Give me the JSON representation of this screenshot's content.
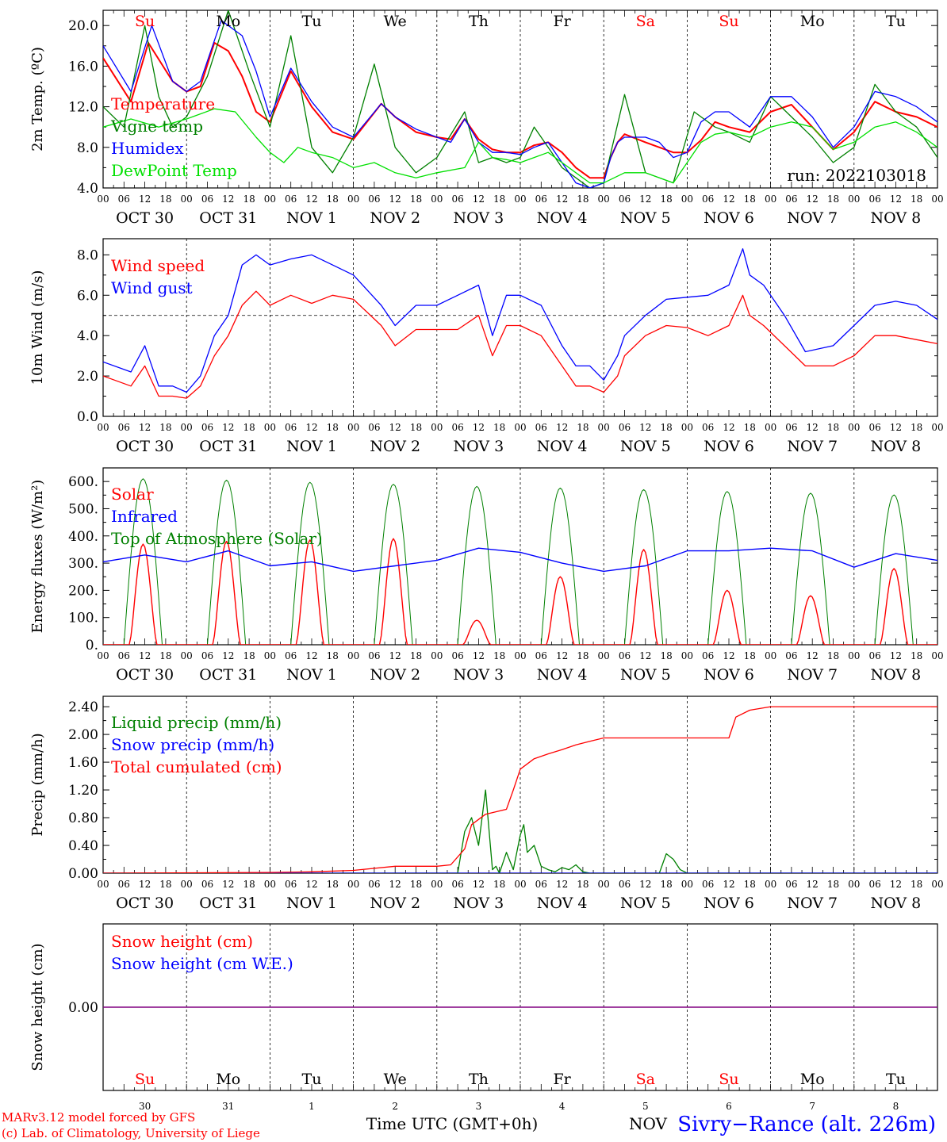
{
  "run_label": "run: 2022103018",
  "footer": {
    "credit1": "MARv3.12 model forced by GFS",
    "credit2": "(c) Lab. of Climatology, University of Liege",
    "xlabel": "Time UTC (GMT+0h)",
    "xlabel_suffix": "NOV",
    "station": "Sivry−Rance (alt. 226m)"
  },
  "colors": {
    "red": "#ff0000",
    "green": "#008000",
    "blue": "#0000ff",
    "lightgreen": "#00e000",
    "purple": "#800080",
    "sat_sun": "#ff0000",
    "weekday": "#000000"
  },
  "days": [
    {
      "dow": "Su",
      "date": "OCT 30",
      "num": "30",
      "weekend": true
    },
    {
      "dow": "Mo",
      "date": "OCT 31",
      "num": "31",
      "weekend": false
    },
    {
      "dow": "Tu",
      "date": "NOV  1",
      "num": "1",
      "weekend": false
    },
    {
      "dow": "We",
      "date": "NOV  2",
      "num": "2",
      "weekend": false
    },
    {
      "dow": "Th",
      "date": "NOV  3",
      "num": "3",
      "weekend": false
    },
    {
      "dow": "Fr",
      "date": "NOV  4",
      "num": "4",
      "weekend": false
    },
    {
      "dow": "Sa",
      "date": "NOV  5",
      "num": "5",
      "weekend": true
    },
    {
      "dow": "Su",
      "date": "NOV  6",
      "num": "6",
      "weekend": true
    },
    {
      "dow": "Mo",
      "date": "NOV  7",
      "num": "7",
      "weekend": false
    },
    {
      "dow": "Tu",
      "date": "NOV  8",
      "num": "8",
      "weekend": false
    }
  ],
  "hour_ticks": [
    "00",
    "06",
    "12",
    "18"
  ],
  "chart_data": [
    {
      "id": "temp",
      "type": "line",
      "ylabel": "2m Temp. (ºC)",
      "ylim": [
        4,
        21.5
      ],
      "yticks": [
        4,
        8,
        12,
        16,
        20
      ],
      "ytick_labels": [
        "4.0",
        "8.0",
        "12.0",
        "16.0",
        "20.0"
      ],
      "x_unit": "hours since OCT 30 00 UTC",
      "series": [
        {
          "name": "Temperature",
          "color": "#ff0000",
          "x": [
            0,
            8,
            13,
            20,
            24,
            28,
            32,
            36,
            40,
            44,
            48,
            54,
            60,
            66,
            72,
            80,
            84,
            90,
            96,
            100,
            104,
            108,
            112,
            116,
            120,
            124,
            128,
            132,
            136,
            140,
            144,
            146,
            148,
            150,
            156,
            160,
            164,
            168,
            172,
            176,
            180,
            186,
            192,
            198,
            204,
            210,
            216,
            222,
            228,
            234,
            240
          ],
          "y": [
            16.8,
            12.5,
            18.3,
            14.5,
            13.5,
            14.0,
            18.3,
            17.5,
            15.0,
            11.5,
            10.5,
            15.5,
            12.0,
            9.5,
            8.8,
            12.3,
            11.0,
            9.5,
            9.0,
            8.8,
            10.8,
            8.8,
            7.8,
            7.5,
            7.5,
            8.2,
            8.5,
            7.5,
            6.0,
            5.0,
            5.0,
            7.0,
            8.5,
            9.3,
            8.5,
            8.0,
            7.5,
            7.5,
            8.7,
            10.5,
            10.0,
            9.5,
            11.5,
            12.2,
            10.0,
            7.8,
            9.5,
            12.5,
            11.5,
            11.0,
            10.0
          ]
        },
        {
          "name": "Vigne temp",
          "color": "#008000",
          "x": [
            0,
            6,
            12,
            16,
            20,
            24,
            30,
            36,
            42,
            48,
            54,
            60,
            66,
            72,
            78,
            84,
            90,
            96,
            104,
            108,
            112,
            116,
            120,
            124,
            128,
            132,
            136,
            140,
            144,
            150,
            156,
            160,
            164,
            170,
            176,
            180,
            186,
            192,
            198,
            204,
            210,
            216,
            222,
            228,
            234,
            240
          ],
          "y": [
            12.0,
            10.0,
            20.0,
            13.0,
            10.0,
            11.0,
            15.0,
            21.5,
            15.5,
            10.0,
            19.0,
            8.0,
            5.5,
            9.0,
            16.2,
            8.0,
            5.5,
            7.0,
            11.5,
            6.5,
            7.0,
            6.5,
            7.0,
            10.0,
            8.0,
            6.0,
            5.0,
            4.0,
            4.5,
            13.2,
            5.5,
            5.0,
            4.5,
            11.5,
            10.0,
            9.5,
            8.5,
            13.0,
            11.0,
            9.0,
            6.5,
            8.0,
            14.2,
            11.5,
            10.0,
            7.0
          ]
        },
        {
          "name": "Humidex",
          "color": "#0000ff",
          "x": [
            0,
            8,
            14,
            20,
            24,
            28,
            34,
            40,
            44,
            48,
            54,
            60,
            66,
            72,
            80,
            84,
            90,
            96,
            100,
            104,
            108,
            112,
            116,
            120,
            124,
            128,
            132,
            136,
            140,
            144,
            146,
            148,
            150,
            156,
            160,
            164,
            168,
            172,
            176,
            180,
            186,
            192,
            198,
            204,
            210,
            216,
            222,
            228,
            234,
            240
          ],
          "y": [
            18.0,
            13.5,
            20.0,
            14.5,
            13.5,
            14.5,
            20.5,
            19.0,
            15.5,
            11.0,
            15.8,
            12.5,
            10.0,
            9.0,
            12.3,
            11.0,
            9.8,
            9.0,
            8.5,
            10.8,
            8.5,
            7.5,
            7.5,
            7.3,
            8.0,
            8.5,
            6.5,
            4.5,
            4.0,
            4.5,
            7.0,
            8.5,
            9.0,
            9.0,
            8.5,
            7.0,
            7.5,
            10.5,
            11.5,
            11.5,
            10.0,
            13.0,
            13.0,
            11.0,
            8.0,
            10.0,
            13.5,
            13.0,
            12.0,
            10.5
          ]
        },
        {
          "name": "DewPoint Temp",
          "color": "#00e000",
          "x": [
            0,
            8,
            16,
            24,
            32,
            38,
            44,
            48,
            52,
            56,
            60,
            66,
            72,
            78,
            84,
            90,
            96,
            104,
            108,
            112,
            116,
            120,
            124,
            128,
            132,
            136,
            140,
            144,
            150,
            156,
            160,
            164,
            168,
            172,
            176,
            180,
            186,
            192,
            198,
            204,
            210,
            216,
            222,
            228,
            234,
            240
          ],
          "y": [
            10.0,
            10.8,
            10.0,
            10.8,
            11.8,
            11.5,
            9.0,
            7.5,
            6.5,
            8.0,
            7.5,
            7.0,
            6.0,
            6.5,
            5.5,
            5.0,
            5.5,
            6.0,
            8.5,
            7.0,
            6.8,
            6.5,
            7.0,
            7.5,
            6.5,
            5.5,
            4.5,
            4.5,
            5.5,
            5.5,
            5.0,
            4.5,
            6.5,
            8.5,
            9.3,
            9.5,
            9.0,
            10.0,
            10.5,
            10.0,
            7.8,
            8.5,
            10.0,
            10.5,
            9.5,
            8.0
          ]
        }
      ]
    },
    {
      "id": "wind",
      "type": "line",
      "ylabel": "10m Wind (m/s)",
      "ylim": [
        0,
        8.8
      ],
      "yticks": [
        0,
        2,
        4,
        6,
        8
      ],
      "ytick_labels": [
        "0.0",
        "2.0",
        "4.0",
        "6.0",
        "8.0"
      ],
      "reference_line": 5.0,
      "series": [
        {
          "name": "Wind speed",
          "color": "#ff0000",
          "x": [
            0,
            8,
            12,
            16,
            20,
            24,
            28,
            32,
            36,
            40,
            44,
            48,
            54,
            60,
            66,
            72,
            80,
            84,
            90,
            96,
            102,
            108,
            112,
            116,
            120,
            126,
            132,
            136,
            140,
            144,
            148,
            150,
            156,
            162,
            168,
            174,
            180,
            184,
            186,
            190,
            196,
            202,
            210,
            216,
            222,
            228,
            234,
            240
          ],
          "y": [
            2.0,
            1.5,
            2.5,
            1.0,
            1.0,
            0.9,
            1.5,
            3.0,
            4.0,
            5.5,
            6.2,
            5.5,
            6.0,
            5.6,
            6.0,
            5.8,
            4.5,
            3.5,
            4.3,
            4.3,
            4.3,
            5.0,
            3.0,
            4.5,
            4.5,
            4.0,
            2.5,
            1.5,
            1.5,
            1.2,
            2.0,
            3.0,
            4.0,
            4.5,
            4.4,
            4.0,
            4.5,
            6.0,
            5.0,
            4.5,
            3.5,
            2.5,
            2.5,
            3.0,
            4.0,
            4.0,
            3.8,
            3.6
          ]
        },
        {
          "name": "Wind gust",
          "color": "#0000ff",
          "x": [
            0,
            8,
            12,
            16,
            20,
            24,
            28,
            32,
            36,
            40,
            44,
            48,
            54,
            60,
            66,
            72,
            80,
            84,
            90,
            96,
            102,
            108,
            112,
            116,
            120,
            126,
            132,
            136,
            140,
            144,
            148,
            150,
            156,
            162,
            168,
            174,
            180,
            184,
            186,
            190,
            196,
            202,
            210,
            216,
            222,
            228,
            234,
            240
          ],
          "y": [
            2.7,
            2.2,
            3.5,
            1.5,
            1.5,
            1.2,
            2.0,
            4.0,
            5.0,
            7.5,
            8.0,
            7.5,
            7.8,
            8.0,
            7.5,
            7.0,
            5.5,
            4.5,
            5.5,
            5.5,
            6.0,
            6.5,
            4.0,
            6.0,
            6.0,
            5.5,
            3.5,
            2.5,
            2.5,
            1.8,
            3.0,
            4.0,
            5.0,
            5.8,
            5.9,
            6.0,
            6.5,
            8.3,
            7.0,
            6.5,
            5.0,
            3.2,
            3.5,
            4.5,
            5.5,
            5.7,
            5.5,
            4.8
          ]
        }
      ]
    },
    {
      "id": "energy",
      "type": "line",
      "ylabel": "Energy fluxes (W/m²)",
      "ylim": [
        0,
        650
      ],
      "yticks": [
        0,
        100,
        200,
        300,
        400,
        500,
        600
      ],
      "ytick_labels": [
        "0.",
        "100.",
        "200.",
        "300.",
        "400.",
        "500.",
        "600."
      ],
      "daily_peaks": {
        "toa_solar": [
          610,
          605,
          597,
          590,
          582,
          576,
          570,
          563,
          557,
          551
        ],
        "solar": [
          370,
          380,
          385,
          390,
          90,
          250,
          350,
          200,
          180,
          280
        ]
      },
      "series": [
        {
          "name": "Solar",
          "color": "#ff0000"
        },
        {
          "name": "Infrared",
          "color": "#0000ff",
          "x": [
            0,
            12,
            24,
            36,
            48,
            60,
            72,
            84,
            96,
            108,
            120,
            132,
            144,
            156,
            168,
            180,
            192,
            204,
            216,
            228,
            240
          ],
          "y": [
            305,
            330,
            305,
            345,
            290,
            305,
            270,
            290,
            310,
            355,
            340,
            300,
            270,
            290,
            345,
            345,
            355,
            345,
            285,
            335,
            310
          ]
        },
        {
          "name": "Top of Atmosphere (Solar)",
          "color": "#008000"
        }
      ]
    },
    {
      "id": "precip",
      "type": "line",
      "ylabel": "Precip (mm/h)",
      "ylim": [
        0,
        2.55
      ],
      "yticks": [
        0,
        0.4,
        0.8,
        1.2,
        1.6,
        2.0,
        2.4
      ],
      "ytick_labels": [
        "0.00",
        "0.40",
        "0.80",
        "1.20",
        "1.60",
        "2.00",
        "2.40"
      ],
      "series": [
        {
          "name": "Liquid precip (mm/h)",
          "color": "#008000",
          "x": [
            0,
            90,
            102,
            104,
            106,
            108,
            110,
            112,
            113,
            114,
            116,
            118,
            120,
            121,
            122,
            124,
            126,
            128,
            130,
            132,
            134,
            136,
            138,
            140,
            160,
            162,
            164,
            166,
            168,
            240
          ],
          "y": [
            0,
            0,
            0,
            0.6,
            0.8,
            0.4,
            1.2,
            0.05,
            0.1,
            0,
            0.3,
            0.05,
            0.55,
            0.7,
            0.3,
            0.4,
            0.1,
            0.05,
            0.02,
            0.08,
            0.05,
            0.12,
            0.02,
            0,
            0,
            0.28,
            0.2,
            0.05,
            0,
            0
          ]
        },
        {
          "name": "Snow precip (mm/h)",
          "color": "#0000ff",
          "x": [
            0,
            240
          ],
          "y": [
            0,
            0
          ]
        },
        {
          "name": "Total cumulated (cm)",
          "color": "#ff0000",
          "x": [
            0,
            48,
            60,
            72,
            84,
            96,
            100,
            104,
            106,
            110,
            116,
            118,
            120,
            124,
            128,
            132,
            136,
            140,
            144,
            156,
            168,
            180,
            182,
            186,
            192,
            240
          ],
          "y": [
            0,
            0.01,
            0.02,
            0.04,
            0.1,
            0.1,
            0.12,
            0.35,
            0.7,
            0.85,
            0.92,
            1.2,
            1.5,
            1.65,
            1.72,
            1.78,
            1.85,
            1.9,
            1.95,
            1.95,
            1.95,
            1.95,
            2.25,
            2.35,
            2.4,
            2.4
          ]
        }
      ]
    },
    {
      "id": "snow",
      "type": "line",
      "ylabel": "Snow height (cm)",
      "ylim": [
        -1,
        1
      ],
      "yticks": [
        0
      ],
      "ytick_labels": [
        "0.00"
      ],
      "series": [
        {
          "name": "Snow height (cm)",
          "color": "#ff0000",
          "x": [
            0,
            240
          ],
          "y": [
            0,
            0
          ]
        },
        {
          "name": "Snow height (cm W.E.)",
          "color": "#0000ff",
          "x": [
            0,
            240
          ],
          "y": [
            0,
            0
          ]
        }
      ]
    }
  ]
}
